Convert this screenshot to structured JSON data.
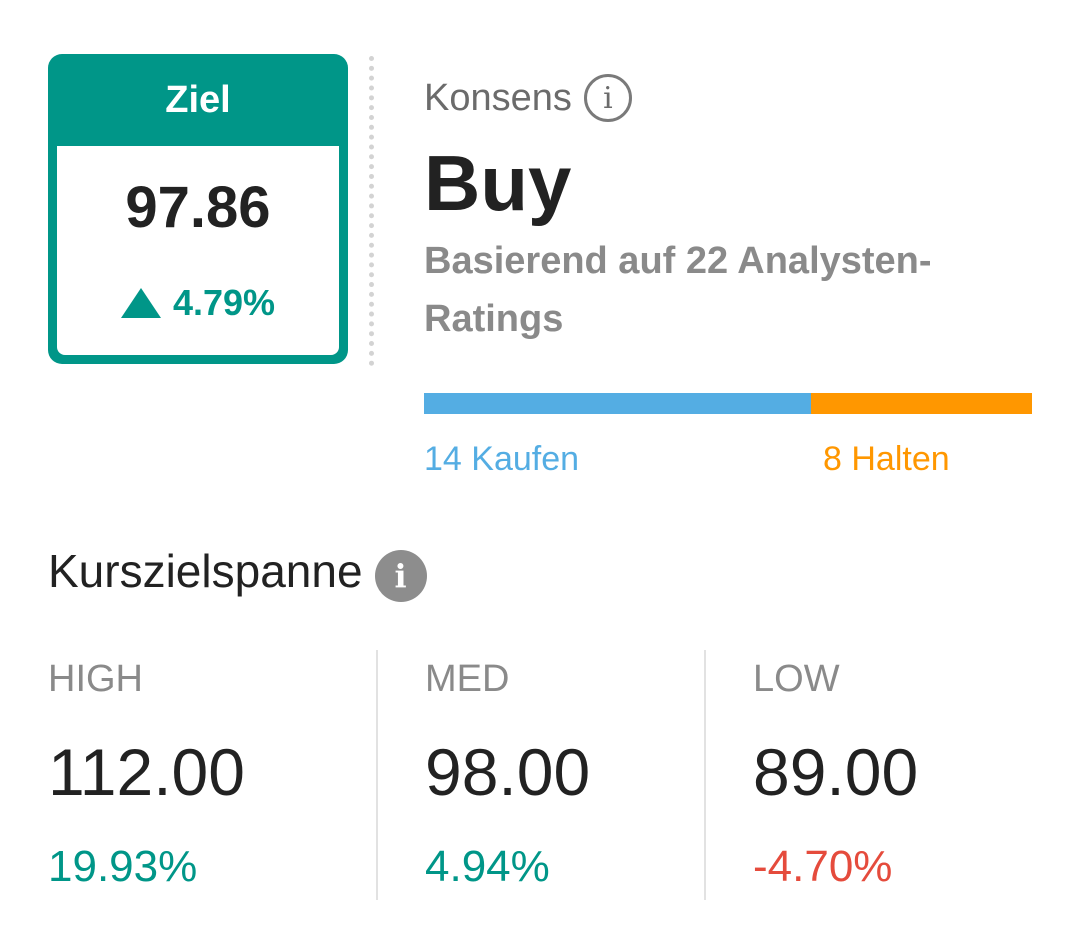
{
  "target": {
    "header": "Ziel",
    "value": "97.86",
    "change": "4.79%",
    "direction": "up"
  },
  "consensus": {
    "label": "Konsens",
    "info_icon": "info-outline-icon",
    "value": "Buy",
    "basis": "Basierend auf 22 Analysten-Ratings"
  },
  "ratings": {
    "buy": {
      "count": 14,
      "label": "14 Kaufen",
      "color": "#54ADE3"
    },
    "hold": {
      "count": 8,
      "label": "8 Halten",
      "color": "#FF9700"
    }
  },
  "range": {
    "title": "Kurszielspanne",
    "info_icon": "info-filled-icon",
    "columns": [
      {
        "key": "high",
        "label": "HIGH",
        "value": "112.00",
        "change": "19.93%",
        "change_color": "#009688"
      },
      {
        "key": "med",
        "label": "MED",
        "value": "98.00",
        "change": "4.94%",
        "change_color": "#009688"
      },
      {
        "key": "low",
        "label": "LOW",
        "value": "89.00",
        "change": "-4.70%",
        "change_color": "#E54B3C"
      }
    ]
  },
  "colors": {
    "accent": "#009688",
    "negative": "#E54B3C"
  }
}
